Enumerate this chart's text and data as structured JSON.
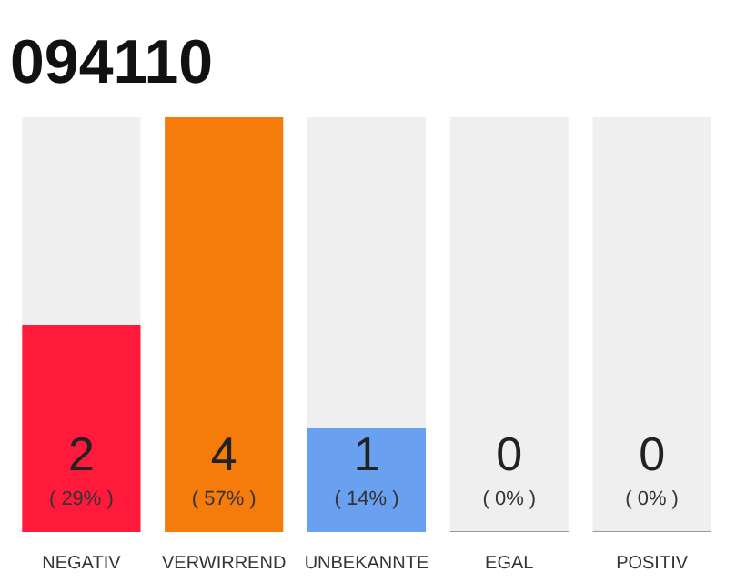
{
  "chart_data": {
    "type": "bar",
    "title": "094110",
    "categories": [
      "NEGATIV",
      "VERWIRREND",
      "UNBEKANNTE",
      "EGAL",
      "POSITIV"
    ],
    "values": [
      2,
      4,
      1,
      0,
      0
    ],
    "colors": [
      "#ff1a3c",
      "#f57c0a",
      "#6aa0f0",
      "#cccccc",
      "#cccccc"
    ],
    "data_labels": true,
    "annotations": [
      {
        "text": "( 29% )",
        "x": "NEGATIV",
        "y": 0
      },
      {
        "text": "( 57% )",
        "x": "VERWIRREND",
        "y": 0
      },
      {
        "text": "( 14% )",
        "x": "UNBEKANNTE",
        "y": 0
      },
      {
        "text": "( 0% )",
        "x": "EGAL",
        "y": 0
      },
      {
        "text": "( 0% )",
        "x": "POSITIV",
        "y": 0
      }
    ],
    "bands": [
      {
        "axis": "x",
        "from": "NEGATIV",
        "to": "NEGATIV",
        "color": "#efefef"
      },
      {
        "axis": "x",
        "from": "UNBEKANNTE",
        "to": "UNBEKANNTE",
        "color": "#efefef"
      },
      {
        "axis": "x",
        "from": "EGAL",
        "to": "EGAL",
        "color": "#efefef"
      },
      {
        "axis": "x",
        "from": "POSITIV",
        "to": "POSITIV",
        "color": "#efefef"
      }
    ],
    "tick_labels": "x",
    "grid": false
  }
}
